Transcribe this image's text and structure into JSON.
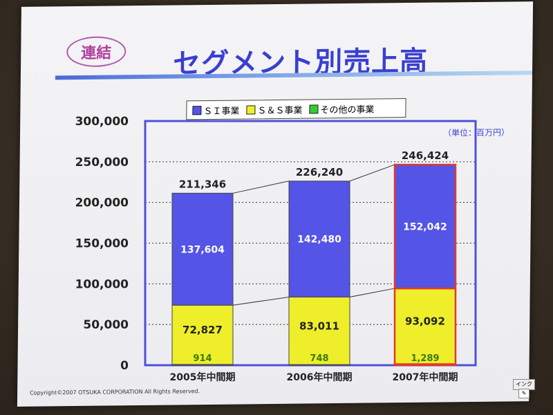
{
  "badge": "連結",
  "title": "セグメント別売上高",
  "unit": "（単位：百万円）",
  "copyright": "Copyright©2007 OTSUKA CORPORATION All Rights Reserved.",
  "ink_label": "インク",
  "colors": {
    "si": "#5454e6",
    "ss": "#eeee2a",
    "other": "#33cc33",
    "frame": "#5050d8",
    "highlight": "#e03a2a"
  },
  "chart_data": {
    "type": "bar",
    "stacked": true,
    "title": "セグメント別売上高",
    "categories": [
      "2005年中間期",
      "2006年中間期",
      "2007年中間期"
    ],
    "series": [
      {
        "name": "ＳＩ事業",
        "values": [
          137604,
          142480,
          152042
        ]
      },
      {
        "name": "Ｓ＆Ｓ事業",
        "values": [
          72827,
          83011,
          93092
        ]
      },
      {
        "name": "その他の事業",
        "values": [
          914,
          748,
          1289
        ]
      }
    ],
    "totals": [
      211346,
      226240,
      246424
    ],
    "total_labels": [
      "211,346",
      "226,240",
      "246,424"
    ],
    "value_labels": {
      "si": [
        "137,604",
        "142,480",
        "152,042"
      ],
      "ss": [
        "72,827",
        "83,011",
        "93,092"
      ],
      "other": [
        "914",
        "748",
        "1,289"
      ]
    },
    "yticks": [
      0,
      50000,
      100000,
      150000,
      200000,
      250000,
      300000
    ],
    "ytick_labels": [
      "0",
      "50,000",
      "100,000",
      "150,000",
      "200,000",
      "250,000",
      "300,000"
    ],
    "ylim": [
      0,
      300000
    ],
    "grid": true,
    "legend": "top"
  }
}
